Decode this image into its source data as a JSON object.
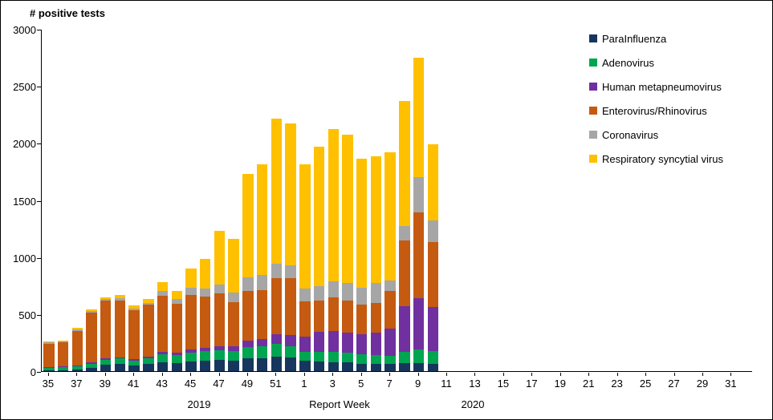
{
  "chart_data": {
    "type": "bar",
    "stacked": true,
    "title": "# positive tests",
    "xlabel": "Report Week",
    "ylabel": "# positive tests",
    "ylim": [
      0,
      3000
    ],
    "y_ticks": [
      0,
      500,
      1000,
      1500,
      2000,
      2500,
      3000
    ],
    "grid": false,
    "legend_position": "top-right",
    "year_labels": {
      "left": "2019",
      "right": "2020"
    },
    "x_axis": {
      "start_year": 2019,
      "start_week": 35,
      "end_year": 2020,
      "end_week": 32,
      "label_every": 2
    },
    "categories": [
      "2019-W35",
      "2019-W36",
      "2019-W37",
      "2019-W38",
      "2019-W39",
      "2019-W40",
      "2019-W41",
      "2019-W42",
      "2019-W43",
      "2019-W44",
      "2019-W45",
      "2019-W46",
      "2019-W47",
      "2019-W48",
      "2019-W49",
      "2019-W50",
      "2019-W51",
      "2019-W52",
      "2020-W01",
      "2020-W02",
      "2020-W03",
      "2020-W04",
      "2020-W05",
      "2020-W06",
      "2020-W07",
      "2020-W08",
      "2020-W09",
      "2020-W10"
    ],
    "series": [
      {
        "name": "ParaInfluenza",
        "color": "#17365d",
        "values": [
          10,
          10,
          15,
          30,
          55,
          60,
          50,
          60,
          75,
          70,
          85,
          90,
          95,
          90,
          110,
          115,
          130,
          120,
          90,
          85,
          80,
          75,
          65,
          60,
          60,
          70,
          70,
          65
        ]
      },
      {
        "name": "Adenovirus",
        "color": "#00a551",
        "values": [
          20,
          25,
          30,
          35,
          45,
          50,
          45,
          55,
          75,
          70,
          80,
          85,
          90,
          85,
          100,
          100,
          110,
          95,
          80,
          85,
          90,
          85,
          80,
          80,
          75,
          100,
          120,
          110
        ]
      },
      {
        "name": "Human metapneumovirus",
        "color": "#7030a0",
        "values": [
          5,
          5,
          5,
          10,
          10,
          10,
          10,
          15,
          20,
          20,
          25,
          30,
          35,
          40,
          55,
          65,
          85,
          100,
          130,
          175,
          185,
          180,
          175,
          195,
          235,
          400,
          450,
          390
        ]
      },
      {
        "name": "Enterovirus/Rhinovirus",
        "color": "#c55a11",
        "values": [
          205,
          210,
          305,
          435,
          505,
          500,
          430,
          450,
          490,
          430,
          480,
          450,
          460,
          390,
          440,
          430,
          490,
          500,
          310,
          270,
          290,
          280,
          265,
          265,
          330,
          575,
          750,
          565
        ]
      },
      {
        "name": "Coronavirus",
        "color": "#a6a6a6",
        "values": [
          10,
          10,
          10,
          15,
          15,
          20,
          15,
          20,
          40,
          40,
          60,
          70,
          80,
          85,
          120,
          130,
          130,
          110,
          115,
          130,
          145,
          150,
          145,
          170,
          95,
          130,
          310,
          190
        ]
      },
      {
        "name": "Respiratory syncytial virus",
        "color": "#ffc000",
        "values": [
          10,
          10,
          15,
          15,
          20,
          25,
          25,
          30,
          80,
          70,
          170,
          260,
          470,
          470,
          905,
          970,
          1265,
          1245,
          1085,
          1225,
          1330,
          1300,
          1130,
          1110,
          1125,
          1095,
          1050,
          670
        ]
      }
    ],
    "totals": [
      260,
      270,
      380,
      540,
      650,
      665,
      575,
      630,
      780,
      700,
      900,
      985,
      1230,
      1160,
      1730,
      1810,
      2210,
      2170,
      1810,
      1970,
      2120,
      2070,
      1860,
      1880,
      1920,
      2370,
      2750,
      1990
    ]
  }
}
